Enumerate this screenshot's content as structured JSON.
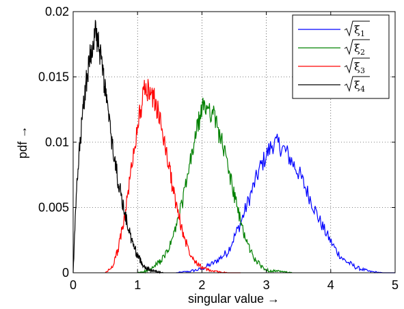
{
  "chart_data": {
    "type": "line",
    "xlabel": "singular value →",
    "ylabel": "pdf →",
    "xlim": [
      0,
      5
    ],
    "ylim": [
      0,
      0.02
    ],
    "xticks": [
      0,
      1,
      2,
      3,
      4,
      5
    ],
    "yticks": [
      0,
      0.005,
      0.01,
      0.015,
      0.02
    ],
    "xtick_labels": [
      "0",
      "1",
      "2",
      "3",
      "4",
      "5"
    ],
    "ytick_labels": [
      "0",
      "0.005",
      "0.01",
      "0.015",
      "0.02"
    ],
    "grid": true,
    "legend_position": "top-right",
    "series": [
      {
        "name": "√ξ₁",
        "label_base": "ξ",
        "label_sub": "1",
        "color": "#0000ff",
        "x": [
          1.6,
          1.8,
          2.0,
          2.2,
          2.4,
          2.5,
          2.6,
          2.7,
          2.8,
          2.9,
          3.0,
          3.1,
          3.2,
          3.3,
          3.4,
          3.5,
          3.6,
          3.7,
          3.8,
          3.9,
          4.0,
          4.1,
          4.2,
          4.4,
          4.6,
          4.8,
          5.0
        ],
        "y": [
          0.0,
          0.0001,
          0.0003,
          0.0008,
          0.0016,
          0.0027,
          0.0038,
          0.0052,
          0.0066,
          0.008,
          0.009,
          0.0099,
          0.0098,
          0.0093,
          0.0085,
          0.0077,
          0.0066,
          0.0055,
          0.0043,
          0.0033,
          0.0024,
          0.0016,
          0.001,
          0.0004,
          0.0001,
          0.0,
          0.0
        ]
      },
      {
        "name": "√ξ₂",
        "label_base": "ξ",
        "label_sub": "2",
        "color": "#008000",
        "x": [
          1.0,
          1.2,
          1.4,
          1.5,
          1.6,
          1.7,
          1.8,
          1.9,
          2.0,
          2.1,
          2.2,
          2.3,
          2.4,
          2.5,
          2.6,
          2.7,
          2.8,
          2.9,
          3.0,
          3.2,
          3.4
        ],
        "y": [
          0.0,
          0.0002,
          0.0011,
          0.002,
          0.0035,
          0.0055,
          0.0079,
          0.0105,
          0.0125,
          0.0128,
          0.0118,
          0.0102,
          0.0082,
          0.006,
          0.0039,
          0.0023,
          0.0012,
          0.0006,
          0.0002,
          0.0001,
          0.0
        ]
      },
      {
        "name": "√ξ₃",
        "label_base": "ξ",
        "label_sub": "3",
        "color": "#ff0000",
        "x": [
          0.5,
          0.6,
          0.7,
          0.8,
          0.9,
          1.0,
          1.1,
          1.2,
          1.3,
          1.4,
          1.5,
          1.6,
          1.7,
          1.8,
          1.9,
          2.0,
          2.1,
          2.2,
          2.4,
          2.6
        ],
        "y": [
          0.0,
          0.0004,
          0.0018,
          0.0043,
          0.0078,
          0.0113,
          0.0138,
          0.014,
          0.0127,
          0.0105,
          0.0078,
          0.0052,
          0.0031,
          0.0017,
          0.0009,
          0.0004,
          0.0002,
          0.0001,
          0.0,
          0.0
        ]
      },
      {
        "name": "√ξ₄",
        "label_base": "ξ",
        "label_sub": "4",
        "color": "#000000",
        "x": [
          0.0,
          0.05,
          0.1,
          0.15,
          0.2,
          0.25,
          0.3,
          0.35,
          0.4,
          0.45,
          0.5,
          0.55,
          0.6,
          0.7,
          0.8,
          0.9,
          1.0,
          1.1,
          1.2,
          1.4
        ],
        "y": [
          0.0,
          0.006,
          0.0095,
          0.0122,
          0.0145,
          0.0162,
          0.0175,
          0.0185,
          0.0172,
          0.0158,
          0.014,
          0.012,
          0.01,
          0.007,
          0.0046,
          0.0026,
          0.0013,
          0.0005,
          0.0002,
          0.0
        ]
      }
    ]
  }
}
